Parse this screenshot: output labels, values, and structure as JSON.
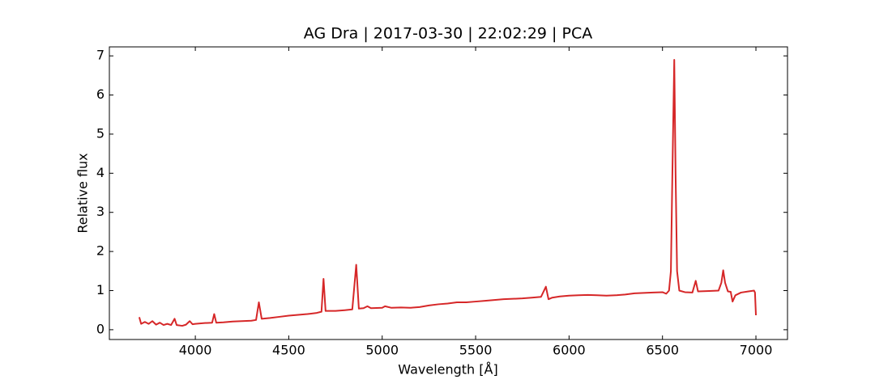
{
  "chart_data": {
    "type": "line",
    "title": "AG Dra | 2017-03-30 | 22:02:29 | PCA",
    "xlabel": "Wavelength [Å]",
    "ylabel": "Relative flux",
    "xlim": [
      3540,
      7169
    ],
    "ylim": [
      -0.25,
      7.23
    ],
    "xticks": [
      4000,
      4500,
      5000,
      5500,
      6000,
      6500,
      7000
    ],
    "yticks": [
      0,
      1,
      2,
      3,
      4,
      5,
      6,
      7
    ],
    "grid": false,
    "series": [
      {
        "color": "#d62728",
        "x": [
          3700,
          3710,
          3730,
          3750,
          3770,
          3790,
          3810,
          3830,
          3850,
          3870,
          3889,
          3900,
          3930,
          3950,
          3970,
          3985,
          4000,
          4050,
          4090,
          4101,
          4112,
          4150,
          4200,
          4250,
          4300,
          4325,
          4340,
          4355,
          4400,
          4450,
          4500,
          4550,
          4600,
          4650,
          4675,
          4686,
          4697,
          4750,
          4800,
          4840,
          4861,
          4875,
          4900,
          4921,
          4940,
          5000,
          5015,
          5050,
          5100,
          5150,
          5200,
          5250,
          5300,
          5350,
          5400,
          5450,
          5500,
          5550,
          5600,
          5650,
          5700,
          5750,
          5800,
          5850,
          5876,
          5890,
          5910,
          5950,
          6000,
          6050,
          6100,
          6150,
          6200,
          6250,
          6300,
          6350,
          6400,
          6450,
          6500,
          6520,
          6535,
          6545,
          6553,
          6563,
          6570,
          6578,
          6590,
          6620,
          6660,
          6678,
          6690,
          6750,
          6800,
          6815,
          6825,
          6835,
          6850,
          6865,
          6875,
          6890,
          6920,
          6960,
          6990,
          6995,
          7000
        ],
        "values": [
          0.32,
          0.15,
          0.2,
          0.15,
          0.22,
          0.13,
          0.18,
          0.12,
          0.15,
          0.12,
          0.28,
          0.12,
          0.1,
          0.13,
          0.22,
          0.14,
          0.15,
          0.17,
          0.18,
          0.4,
          0.18,
          0.19,
          0.21,
          0.22,
          0.23,
          0.25,
          0.7,
          0.28,
          0.3,
          0.33,
          0.36,
          0.38,
          0.4,
          0.43,
          0.46,
          1.3,
          0.48,
          0.48,
          0.5,
          0.52,
          1.66,
          0.54,
          0.55,
          0.6,
          0.55,
          0.56,
          0.6,
          0.56,
          0.57,
          0.56,
          0.58,
          0.62,
          0.65,
          0.67,
          0.7,
          0.7,
          0.72,
          0.74,
          0.76,
          0.78,
          0.79,
          0.8,
          0.82,
          0.84,
          1.1,
          0.78,
          0.82,
          0.85,
          0.87,
          0.88,
          0.89,
          0.88,
          0.87,
          0.88,
          0.9,
          0.93,
          0.94,
          0.95,
          0.96,
          0.92,
          1.0,
          1.5,
          4.0,
          6.9,
          4.0,
          1.5,
          1.0,
          0.96,
          0.95,
          1.25,
          0.98,
          0.99,
          1.0,
          1.2,
          1.52,
          1.2,
          0.98,
          0.97,
          0.72,
          0.88,
          0.95,
          0.98,
          1.0,
          0.95,
          0.37
        ]
      }
    ]
  }
}
